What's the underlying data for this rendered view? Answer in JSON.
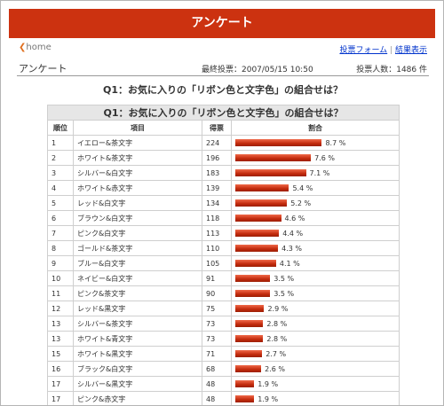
{
  "header": {
    "title": "アンケート"
  },
  "nav": {
    "home": "home",
    "links": [
      "投票フォーム",
      "結果表示"
    ],
    "separator": "|"
  },
  "info": {
    "page_label": "アンケート",
    "last_vote": "最終投票：2007/05/15 10:50",
    "voters": "投票人数：1486 件"
  },
  "question": "Q1：お気に入りの「リボン色と文字色」の組合せは？",
  "table": {
    "caption": "Q1：お気に入りの「リボン色と文字色」の組合せは？",
    "columns": [
      "順位",
      "項目",
      "得票",
      "割合"
    ],
    "rows": [
      {
        "rank": 1,
        "item": "イエロー&茶文字",
        "votes": 224,
        "share": 8.7,
        "share_label": "8.7 %"
      },
      {
        "rank": 2,
        "item": "ホワイト&茶文字",
        "votes": 196,
        "share": 7.6,
        "share_label": "7.6 %"
      },
      {
        "rank": 3,
        "item": "シルバー&白文字",
        "votes": 183,
        "share": 7.1,
        "share_label": "7.1 %"
      },
      {
        "rank": 4,
        "item": "ホワイト&赤文字",
        "votes": 139,
        "share": 5.4,
        "share_label": "5.4 %"
      },
      {
        "rank": 5,
        "item": "レッド&白文字",
        "votes": 134,
        "share": 5.2,
        "share_label": "5.2 %"
      },
      {
        "rank": 6,
        "item": "ブラウン&白文字",
        "votes": 118,
        "share": 4.6,
        "share_label": "4.6 %"
      },
      {
        "rank": 7,
        "item": "ピンク&白文字",
        "votes": 113,
        "share": 4.4,
        "share_label": "4.4 %"
      },
      {
        "rank": 8,
        "item": "ゴールド&茶文字",
        "votes": 110,
        "share": 4.3,
        "share_label": "4.3 %"
      },
      {
        "rank": 9,
        "item": "ブルー&白文字",
        "votes": 105,
        "share": 4.1,
        "share_label": "4.1 %"
      },
      {
        "rank": 10,
        "item": "ネイビー&白文字",
        "votes": 91,
        "share": 3.5,
        "share_label": "3.5 %"
      },
      {
        "rank": 11,
        "item": "ピンク&茶文字",
        "votes": 90,
        "share": 3.5,
        "share_label": "3.5 %"
      },
      {
        "rank": 12,
        "item": "レッド&黒文字",
        "votes": 75,
        "share": 2.9,
        "share_label": "2.9 %"
      },
      {
        "rank": 13,
        "item": "シルバー&茶文字",
        "votes": 73,
        "share": 2.8,
        "share_label": "2.8 %"
      },
      {
        "rank": 13,
        "item": "ホワイト&青文字",
        "votes": 73,
        "share": 2.8,
        "share_label": "2.8 %"
      },
      {
        "rank": 15,
        "item": "ホワイト&黒文字",
        "votes": 71,
        "share": 2.7,
        "share_label": "2.7 %"
      },
      {
        "rank": 16,
        "item": "ブラック&白文字",
        "votes": 68,
        "share": 2.6,
        "share_label": "2.6 %"
      },
      {
        "rank": 17,
        "item": "シルバー&黒文字",
        "votes": 48,
        "share": 1.9,
        "share_label": "1.9 %"
      },
      {
        "rank": 17,
        "item": "ピンク&赤文字",
        "votes": 48,
        "share": 1.9,
        "share_label": "1.9 %"
      }
    ]
  }
}
